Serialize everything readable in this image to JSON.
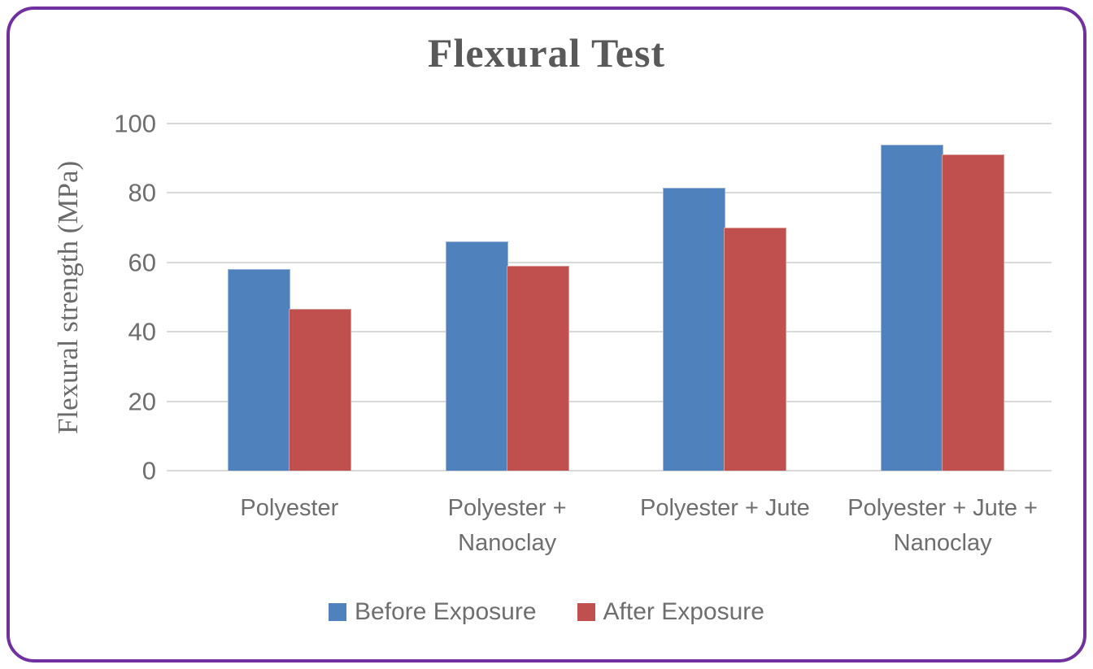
{
  "frame": {
    "border_color": "#7030A0",
    "background_color": "#ffffff"
  },
  "chart_data": {
    "type": "bar",
    "title": "Flexural Test",
    "xlabel": "",
    "ylabel": "Flexural strength (MPa)",
    "categories": [
      "Polyester",
      "Polyester + Nanoclay",
      "Polyester + Jute",
      "Polyester + Jute + Nanoclay"
    ],
    "series": [
      {
        "name": "Before Exposure",
        "color": "#4F81BD",
        "values": [
          58,
          66,
          81.5,
          94
        ]
      },
      {
        "name": "After Exposure",
        "color": "#C0504D",
        "values": [
          46.5,
          59,
          70,
          91
        ]
      }
    ],
    "ylim": [
      0,
      100
    ],
    "yticks": [
      0,
      20,
      40,
      60,
      80,
      100
    ],
    "grid": "horizontal",
    "gridline_color": "#d9d9d9",
    "text_color": "#6e6e6e",
    "title_color": "#595959",
    "legend_position": "bottom"
  }
}
